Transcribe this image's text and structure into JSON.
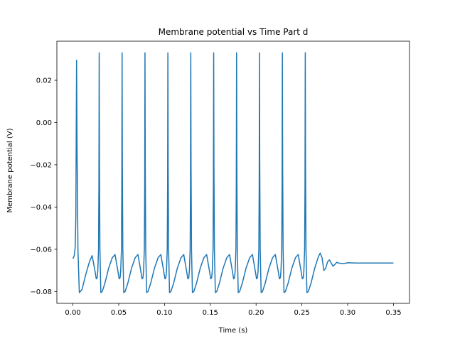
{
  "chart_data": {
    "type": "line",
    "title": "Membrane potential vs Time Part d",
    "xlabel": "Time (s)",
    "ylabel": "Membrane potential (V)",
    "xlim": [
      -0.0175,
      0.3675
    ],
    "ylim": [
      -0.0856,
      0.0385
    ],
    "grid": false,
    "x_ticks": [
      0.0,
      0.05,
      0.1,
      0.15,
      0.2,
      0.25,
      0.3,
      0.35
    ],
    "x_tick_labels": [
      "0.00",
      "0.05",
      "0.10",
      "0.15",
      "0.20",
      "0.25",
      "0.30",
      "0.35"
    ],
    "y_ticks": [
      -0.08,
      -0.06,
      -0.04,
      -0.02,
      0.0,
      0.02
    ],
    "y_tick_labels": [
      "−0.08",
      "−0.06",
      "−0.04",
      "−0.02",
      "0.00",
      "0.02"
    ],
    "series": [
      {
        "color": "#1f77b4",
        "x": [
          0.0,
          0.0015,
          0.0025,
          0.0032,
          0.0036,
          0.004,
          0.0045,
          0.0055,
          0.007,
          0.01,
          0.014,
          0.018,
          0.021,
          0.024,
          0.0255,
          0.0265,
          0.0272,
          0.028,
          0.0284,
          0.0287,
          0.029,
          0.0295,
          0.0305,
          0.032,
          0.035,
          0.039,
          0.043,
          0.046,
          0.049,
          0.0505,
          0.0515,
          0.0522,
          0.053,
          0.0534,
          0.0537,
          0.054,
          0.0545,
          0.0555,
          0.057,
          0.06,
          0.064,
          0.068,
          0.071,
          0.074,
          0.0755,
          0.0765,
          0.0772,
          0.078,
          0.0784,
          0.0787,
          0.079,
          0.0795,
          0.0805,
          0.082,
          0.085,
          0.089,
          0.093,
          0.096,
          0.099,
          0.1005,
          0.1015,
          0.1022,
          0.103,
          0.1034,
          0.1037,
          0.104,
          0.1045,
          0.1055,
          0.107,
          0.11,
          0.114,
          0.118,
          0.121,
          0.124,
          0.1255,
          0.1265,
          0.1272,
          0.128,
          0.1284,
          0.1287,
          0.129,
          0.1295,
          0.1305,
          0.132,
          0.135,
          0.139,
          0.143,
          0.146,
          0.149,
          0.1505,
          0.1515,
          0.1522,
          0.153,
          0.1534,
          0.1537,
          0.154,
          0.1545,
          0.1555,
          0.157,
          0.16,
          0.164,
          0.168,
          0.171,
          0.174,
          0.1755,
          0.1765,
          0.1772,
          0.178,
          0.1784,
          0.1787,
          0.179,
          0.1795,
          0.1805,
          0.182,
          0.185,
          0.189,
          0.193,
          0.196,
          0.199,
          0.2005,
          0.2015,
          0.2022,
          0.203,
          0.2034,
          0.2037,
          0.204,
          0.2045,
          0.2055,
          0.207,
          0.21,
          0.214,
          0.218,
          0.221,
          0.224,
          0.2255,
          0.2265,
          0.2272,
          0.228,
          0.2284,
          0.2287,
          0.229,
          0.2295,
          0.2305,
          0.232,
          0.235,
          0.239,
          0.243,
          0.246,
          0.249,
          0.2505,
          0.2515,
          0.2522,
          0.253,
          0.2534,
          0.2537,
          0.254,
          0.2545,
          0.2555,
          0.257,
          0.26,
          0.264,
          0.268,
          0.27,
          0.272,
          0.274,
          0.276,
          0.278,
          0.28,
          0.282,
          0.284,
          0.286,
          0.288,
          0.29,
          0.295,
          0.3,
          0.31,
          0.32,
          0.33,
          0.34,
          0.35
        ],
        "y": [
          -0.0645,
          -0.063,
          -0.059,
          -0.045,
          -0.01,
          0.0295,
          -0.01,
          -0.06,
          -0.0805,
          -0.079,
          -0.072,
          -0.066,
          -0.063,
          -0.07,
          -0.074,
          -0.0735,
          -0.07,
          -0.06,
          -0.03,
          0.033,
          -0.02,
          -0.06,
          -0.0805,
          -0.08,
          -0.076,
          -0.069,
          -0.064,
          -0.0625,
          -0.07,
          -0.074,
          -0.0735,
          -0.07,
          -0.06,
          -0.03,
          0.033,
          -0.02,
          -0.06,
          -0.0805,
          -0.08,
          -0.076,
          -0.069,
          -0.064,
          -0.0625,
          -0.07,
          -0.074,
          -0.0735,
          -0.07,
          -0.06,
          -0.03,
          0.033,
          -0.02,
          -0.06,
          -0.0805,
          -0.08,
          -0.076,
          -0.069,
          -0.064,
          -0.0625,
          -0.07,
          -0.074,
          -0.0735,
          -0.07,
          -0.06,
          -0.03,
          0.033,
          -0.02,
          -0.06,
          -0.0805,
          -0.08,
          -0.076,
          -0.069,
          -0.064,
          -0.0625,
          -0.07,
          -0.074,
          -0.0735,
          -0.07,
          -0.06,
          -0.03,
          0.033,
          -0.02,
          -0.06,
          -0.0805,
          -0.08,
          -0.076,
          -0.069,
          -0.064,
          -0.0625,
          -0.07,
          -0.074,
          -0.0735,
          -0.07,
          -0.06,
          -0.03,
          0.033,
          -0.02,
          -0.06,
          -0.0805,
          -0.08,
          -0.076,
          -0.069,
          -0.064,
          -0.0625,
          -0.07,
          -0.074,
          -0.0735,
          -0.07,
          -0.06,
          -0.03,
          0.033,
          -0.02,
          -0.06,
          -0.0805,
          -0.08,
          -0.076,
          -0.069,
          -0.064,
          -0.0625,
          -0.07,
          -0.074,
          -0.0735,
          -0.07,
          -0.06,
          -0.03,
          0.033,
          -0.02,
          -0.06,
          -0.0805,
          -0.08,
          -0.076,
          -0.069,
          -0.064,
          -0.0625,
          -0.07,
          -0.074,
          -0.0735,
          -0.07,
          -0.06,
          -0.03,
          0.033,
          -0.02,
          -0.06,
          -0.0805,
          -0.08,
          -0.076,
          -0.069,
          -0.064,
          -0.0625,
          -0.07,
          -0.074,
          -0.0735,
          -0.07,
          -0.06,
          -0.03,
          0.033,
          -0.02,
          -0.06,
          -0.0805,
          -0.08,
          -0.076,
          -0.069,
          -0.0635,
          -0.0618,
          -0.064,
          -0.07,
          -0.069,
          -0.066,
          -0.065,
          -0.0665,
          -0.068,
          -0.0672,
          -0.0662,
          -0.0665,
          -0.0668,
          -0.0664,
          -0.0665,
          -0.0665,
          -0.0665,
          -0.0665,
          -0.0665
        ]
      }
    ]
  }
}
